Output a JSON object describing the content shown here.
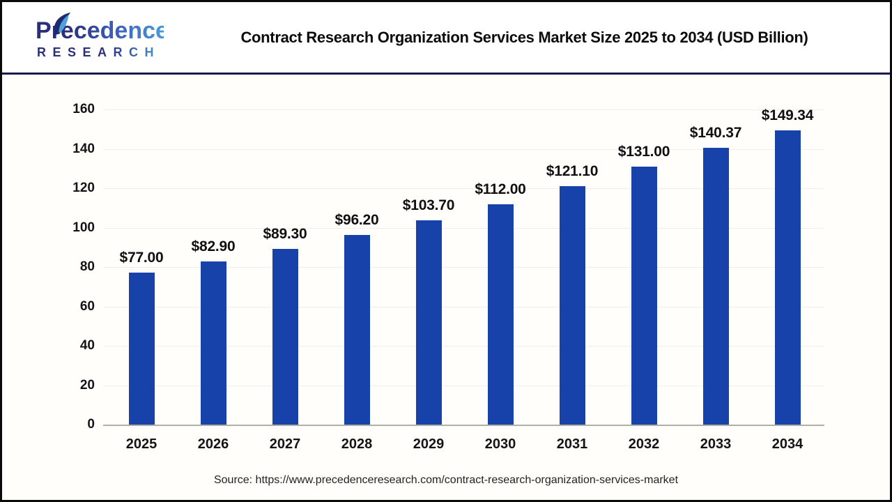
{
  "header": {
    "logo": {
      "line1": "Precedence",
      "line2": "RESEARCH"
    },
    "title": "Contract Research Organization Services Market Size 2025 to 2034 (USD Billion)"
  },
  "chart_data": {
    "type": "bar",
    "title": "Contract Research Organization Services Market Size 2025 to 2034 (USD Billion)",
    "categories": [
      "2025",
      "2026",
      "2027",
      "2028",
      "2029",
      "2030",
      "2031",
      "2032",
      "2033",
      "2034"
    ],
    "values": [
      77.0,
      82.9,
      89.3,
      96.2,
      103.7,
      112.0,
      121.1,
      131.0,
      140.37,
      149.34
    ],
    "value_labels": [
      "$77.00",
      "$82.90",
      "$89.30",
      "$96.20",
      "$103.70",
      "$112.00",
      "$121.10",
      "$131.00",
      "$140.37",
      "$149.34"
    ],
    "xlabel": "",
    "ylabel": "",
    "ylim": [
      0,
      160
    ],
    "yticks": [
      0,
      20,
      40,
      60,
      80,
      100,
      120,
      140,
      160
    ],
    "grid": "horizontal-faint",
    "legend": "none",
    "bar_color": "#1742a9",
    "unit": "USD Billion"
  },
  "footer": {
    "source": "Source: https://www.precedenceresearch.com/contract-research-organization-services-market"
  },
  "colors": {
    "bar": "#1742a9",
    "header_divider": "#1a1a4e",
    "frame_border": "#0a0a0a",
    "axis_line": "#b2afa9",
    "logo_navy": "#2b2f7a",
    "logo_blue": "#4a9ad8"
  }
}
